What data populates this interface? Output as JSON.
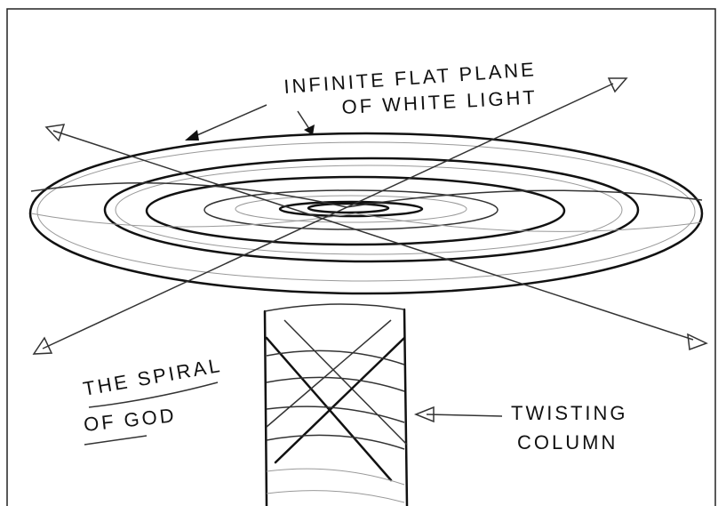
{
  "labels": [
    {
      "lines": [
        "INFINITE FLAT PLANE",
        "OF WHITE LIGHT"
      ]
    },
    {
      "lines": [
        "THE SPIRAL",
        "OF GOD"
      ]
    },
    {
      "lines": [
        "TWISTING",
        "COLUMN"
      ]
    }
  ]
}
